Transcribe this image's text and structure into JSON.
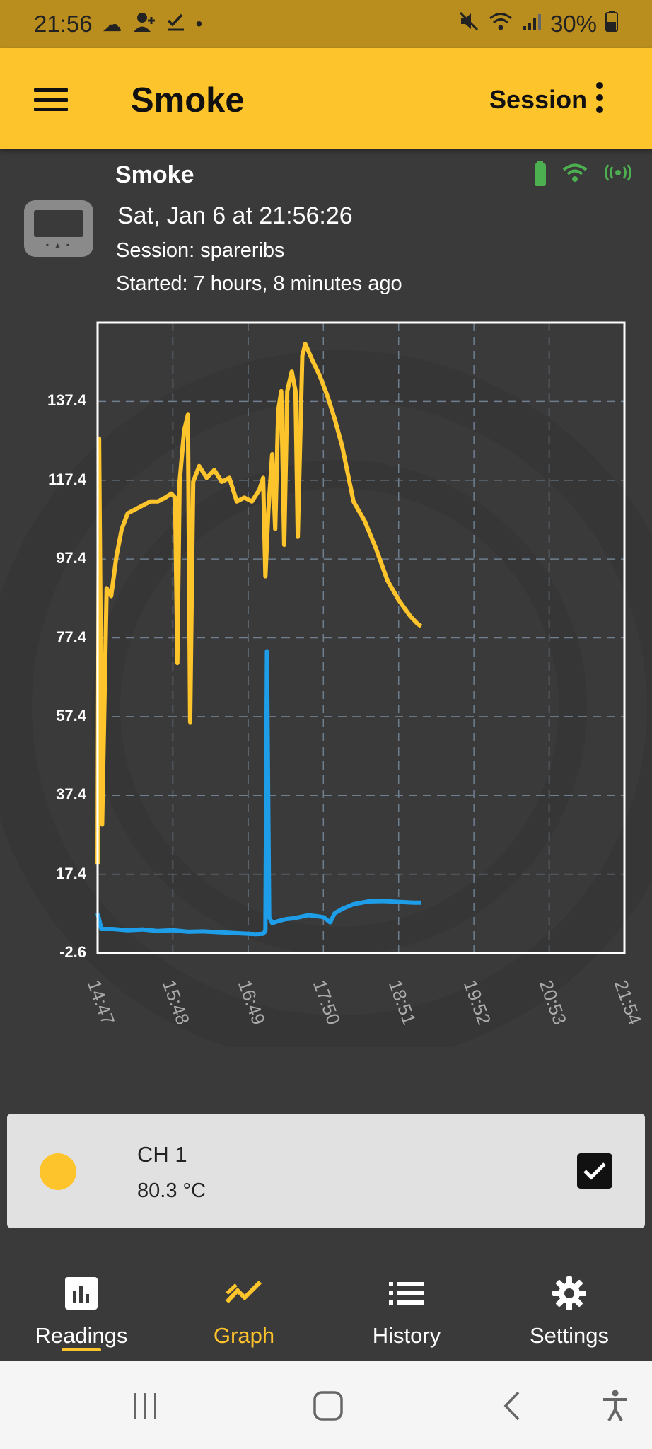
{
  "status_bar": {
    "time": "21:56",
    "battery": "30%"
  },
  "app_bar": {
    "title": "Smoke",
    "session_label": "Session"
  },
  "device": {
    "name": "Smoke",
    "datetime": "Sat, Jan 6  at 21:56:26",
    "session": "Session: spareribs",
    "started": "Started: 7 hours, 8 minutes ago"
  },
  "chart_data": {
    "type": "line",
    "y_ticks": [
      "137.4",
      "117.4",
      "97.4",
      "77.4",
      "57.4",
      "37.4",
      "17.4",
      "-2.6"
    ],
    "x_ticks": [
      "14:47",
      "15:48",
      "16:49",
      "17:50",
      "18:51",
      "19:52",
      "20:53",
      "21:54"
    ],
    "ylim": [
      -2.6,
      157.4
    ],
    "grid": true,
    "series": [
      {
        "color": "#fec42b",
        "points": [
          [
            0.0,
            20
          ],
          [
            0.02,
            128
          ],
          [
            0.06,
            30
          ],
          [
            0.12,
            90
          ],
          [
            0.18,
            88
          ],
          [
            0.25,
            98
          ],
          [
            0.32,
            105
          ],
          [
            0.4,
            109
          ],
          [
            0.5,
            110
          ],
          [
            0.6,
            111
          ],
          [
            0.7,
            112
          ],
          [
            0.8,
            112
          ],
          [
            0.9,
            113
          ],
          [
            0.98,
            114
          ],
          [
            1.03,
            113
          ],
          [
            1.06,
            71
          ],
          [
            1.09,
            117
          ],
          [
            1.15,
            130
          ],
          [
            1.2,
            134
          ],
          [
            1.23,
            56
          ],
          [
            1.27,
            117
          ],
          [
            1.35,
            121
          ],
          [
            1.45,
            118
          ],
          [
            1.55,
            120
          ],
          [
            1.65,
            117
          ],
          [
            1.75,
            118
          ],
          [
            1.85,
            112
          ],
          [
            1.95,
            113
          ],
          [
            2.05,
            112
          ],
          [
            2.15,
            115
          ],
          [
            2.2,
            118
          ],
          [
            2.23,
            93
          ],
          [
            2.27,
            110
          ],
          [
            2.32,
            124
          ],
          [
            2.36,
            105
          ],
          [
            2.4,
            135
          ],
          [
            2.44,
            140
          ],
          [
            2.48,
            101
          ],
          [
            2.52,
            140
          ],
          [
            2.58,
            145
          ],
          [
            2.63,
            140
          ],
          [
            2.66,
            103
          ],
          [
            2.72,
            149
          ],
          [
            2.76,
            152
          ],
          [
            2.85,
            148
          ],
          [
            2.95,
            144
          ],
          [
            3.05,
            139
          ],
          [
            3.15,
            133
          ],
          [
            3.25,
            126
          ],
          [
            3.4,
            112
          ],
          [
            3.55,
            107
          ],
          [
            3.7,
            100
          ],
          [
            3.85,
            92
          ],
          [
            4.0,
            87
          ],
          [
            4.15,
            83
          ],
          [
            4.25,
            81
          ],
          [
            4.3,
            80.3
          ]
        ]
      },
      {
        "color": "#1e9ee8",
        "points": [
          [
            0.0,
            7.5
          ],
          [
            0.05,
            3.5
          ],
          [
            0.2,
            3.5
          ],
          [
            0.4,
            3.2
          ],
          [
            0.6,
            3.4
          ],
          [
            0.8,
            3.0
          ],
          [
            1.0,
            3.2
          ],
          [
            1.2,
            2.8
          ],
          [
            1.4,
            2.9
          ],
          [
            1.6,
            2.7
          ],
          [
            1.8,
            2.5
          ],
          [
            2.0,
            2.3
          ],
          [
            2.1,
            2.2
          ],
          [
            2.2,
            2.3
          ],
          [
            2.23,
            3.0
          ],
          [
            2.25,
            74
          ],
          [
            2.28,
            6.5
          ],
          [
            2.32,
            5.0
          ],
          [
            2.4,
            5.5
          ],
          [
            2.5,
            6.0
          ],
          [
            2.6,
            6.2
          ],
          [
            2.7,
            6.6
          ],
          [
            2.8,
            7.0
          ],
          [
            2.9,
            6.8
          ],
          [
            3.0,
            6.5
          ],
          [
            3.09,
            5.2
          ],
          [
            3.15,
            7.5
          ],
          [
            3.25,
            8.6
          ],
          [
            3.4,
            9.8
          ],
          [
            3.6,
            10.5
          ],
          [
            3.8,
            10.6
          ],
          [
            4.0,
            10.4
          ],
          [
            4.2,
            10.2
          ],
          [
            4.3,
            10.2
          ]
        ]
      }
    ]
  },
  "channel": {
    "name": "CH 1",
    "value": "80.3 °C",
    "color": "#fec42b"
  },
  "bottom_nav": {
    "items": [
      {
        "label": "Readings",
        "icon": "bar-chart-icon"
      },
      {
        "label": "Graph",
        "icon": "trend-icon"
      },
      {
        "label": "History",
        "icon": "list-icon"
      },
      {
        "label": "Settings",
        "icon": "gear-icon"
      }
    ],
    "active": "Graph"
  }
}
